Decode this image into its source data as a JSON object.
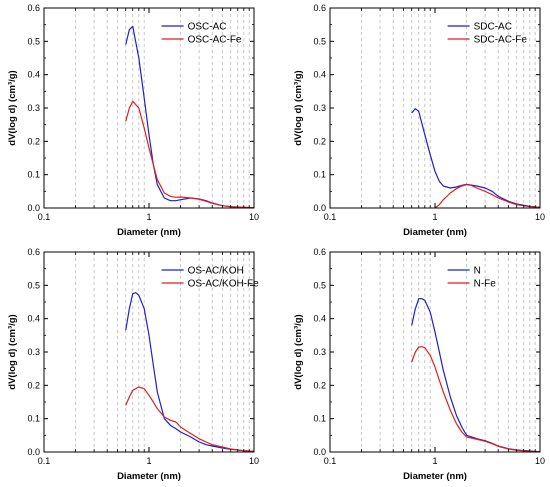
{
  "chart_data": [
    {
      "type": "line",
      "xscale": "log",
      "xlabel": "Diameter (nm)",
      "ylabel": "dV(log d) (cm³/g)",
      "xlim": [
        0.1,
        10
      ],
      "ylim": [
        0,
        0.6
      ],
      "x_ticks": [
        "0.1",
        "1",
        "10"
      ],
      "y_ticks": [
        "0.0",
        "0.1",
        "0.2",
        "0.3",
        "0.4",
        "0.5",
        "0.6"
      ],
      "grid": "vertical-dashed",
      "legend": "top-right",
      "series": [
        {
          "name": "OSC-AC",
          "color": "#1f1fd0",
          "x": [
            0.6,
            0.65,
            0.7,
            0.8,
            0.9,
            1.0,
            1.1,
            1.2,
            1.4,
            1.6,
            1.8,
            2.0,
            2.5,
            3.0,
            3.5,
            4,
            5,
            6,
            8,
            10
          ],
          "y": [
            0.49,
            0.535,
            0.545,
            0.45,
            0.33,
            0.22,
            0.13,
            0.07,
            0.03,
            0.022,
            0.022,
            0.025,
            0.03,
            0.027,
            0.022,
            0.015,
            0.007,
            0.004,
            0.002,
            0.001
          ]
        },
        {
          "name": "OSC-AC-Fe",
          "color": "#e0201a",
          "x": [
            0.6,
            0.65,
            0.7,
            0.8,
            0.9,
            1.0,
            1.1,
            1.2,
            1.4,
            1.6,
            1.8,
            2.0,
            2.5,
            3.0,
            3.5,
            4,
            5,
            6,
            8,
            10
          ],
          "y": [
            0.26,
            0.3,
            0.32,
            0.3,
            0.24,
            0.18,
            0.13,
            0.085,
            0.045,
            0.035,
            0.032,
            0.033,
            0.03,
            0.026,
            0.02,
            0.014,
            0.007,
            0.004,
            0.002,
            0.001
          ]
        }
      ]
    },
    {
      "type": "line",
      "xscale": "log",
      "xlabel": "Diameter (nm)",
      "ylabel": "dV(log d) (cm³/g)",
      "xlim": [
        0.1,
        10
      ],
      "ylim": [
        0,
        0.6
      ],
      "x_ticks": [
        "0.1",
        "1",
        "10"
      ],
      "y_ticks": [
        "0.0",
        "0.1",
        "0.2",
        "0.3",
        "0.4",
        "0.5",
        "0.6"
      ],
      "grid": "vertical-dashed",
      "legend": "top-right",
      "series": [
        {
          "name": "SDC-AC",
          "color": "#1f1fd0",
          "x": [
            0.6,
            0.65,
            0.7,
            0.8,
            0.9,
            1.0,
            1.1,
            1.2,
            1.4,
            1.6,
            1.8,
            2.0,
            2.5,
            3.0,
            3.5,
            4,
            5,
            6,
            8,
            10
          ],
          "y": [
            0.285,
            0.298,
            0.29,
            0.22,
            0.16,
            0.11,
            0.08,
            0.066,
            0.06,
            0.063,
            0.068,
            0.071,
            0.066,
            0.06,
            0.05,
            0.035,
            0.02,
            0.012,
            0.005,
            0.002
          ]
        },
        {
          "name": "SDC-AC-Fe",
          "color": "#e0201a",
          "x": [
            1.0,
            1.1,
            1.2,
            1.4,
            1.6,
            1.8,
            2.0,
            2.2,
            2.5,
            3.0,
            3.5,
            4,
            5,
            6,
            8,
            10
          ],
          "y": [
            0.0,
            0.01,
            0.025,
            0.045,
            0.058,
            0.066,
            0.07,
            0.068,
            0.06,
            0.05,
            0.04,
            0.03,
            0.018,
            0.01,
            0.004,
            0.002
          ]
        }
      ]
    },
    {
      "type": "line",
      "xscale": "log",
      "xlabel": "Diameter (nm)",
      "ylabel": "dV(log d) (cm³/g)",
      "xlim": [
        0.1,
        10
      ],
      "ylim": [
        0,
        0.6
      ],
      "x_ticks": [
        "0.1",
        "1",
        "10"
      ],
      "y_ticks": [
        "0.0",
        "0.1",
        "0.2",
        "0.3",
        "0.4",
        "0.5",
        "0.6"
      ],
      "grid": "vertical-dashed",
      "legend": "top-right",
      "series": [
        {
          "name": "OS-AC/KOH",
          "color": "#1f1fd0",
          "x": [
            0.6,
            0.65,
            0.7,
            0.75,
            0.8,
            0.9,
            1.0,
            1.1,
            1.2,
            1.4,
            1.6,
            1.8,
            2.0,
            2.5,
            3.0,
            3.5,
            4,
            5,
            6,
            8,
            10
          ],
          "y": [
            0.365,
            0.43,
            0.475,
            0.478,
            0.47,
            0.43,
            0.35,
            0.26,
            0.18,
            0.1,
            0.08,
            0.07,
            0.06,
            0.045,
            0.03,
            0.022,
            0.018,
            0.012,
            0.008,
            0.004,
            0.002
          ]
        },
        {
          "name": "OS-AC/KOH-Fe",
          "color": "#e0201a",
          "x": [
            0.6,
            0.65,
            0.7,
            0.8,
            0.9,
            1.0,
            1.1,
            1.2,
            1.4,
            1.6,
            1.8,
            2.0,
            2.5,
            3.0,
            3.5,
            4,
            5,
            6,
            8,
            10
          ],
          "y": [
            0.14,
            0.165,
            0.185,
            0.195,
            0.19,
            0.17,
            0.15,
            0.13,
            0.105,
            0.095,
            0.09,
            0.075,
            0.055,
            0.04,
            0.03,
            0.022,
            0.015,
            0.009,
            0.004,
            0.002
          ]
        }
      ]
    },
    {
      "type": "line",
      "xscale": "log",
      "xlabel": "Diameter (nm)",
      "ylabel": "dV(log d) (cm³/g)",
      "xlim": [
        0.1,
        10
      ],
      "ylim": [
        0,
        0.6
      ],
      "x_ticks": [
        "0.1",
        "1",
        "10"
      ],
      "y_ticks": [
        "0.0",
        "0.1",
        "0.2",
        "0.3",
        "0.4",
        "0.5",
        "0.6"
      ],
      "grid": "vertical-dashed",
      "legend": "top-right",
      "series": [
        {
          "name": "N",
          "color": "#1f1fd0",
          "x": [
            0.6,
            0.65,
            0.7,
            0.75,
            0.8,
            0.9,
            1.0,
            1.1,
            1.2,
            1.4,
            1.6,
            1.8,
            2.0,
            2.5,
            3.0,
            3.5,
            4,
            5,
            6,
            8,
            10
          ],
          "y": [
            0.38,
            0.43,
            0.46,
            0.46,
            0.455,
            0.42,
            0.36,
            0.3,
            0.245,
            0.165,
            0.11,
            0.075,
            0.05,
            0.04,
            0.034,
            0.026,
            0.018,
            0.01,
            0.006,
            0.003,
            0.001
          ]
        },
        {
          "name": "N-Fe",
          "color": "#e0201a",
          "x": [
            0.6,
            0.65,
            0.7,
            0.75,
            0.8,
            0.9,
            1.0,
            1.1,
            1.2,
            1.4,
            1.6,
            1.8,
            2.0,
            2.5,
            3.0,
            3.5,
            4,
            5,
            6,
            8,
            10
          ],
          "y": [
            0.27,
            0.3,
            0.315,
            0.316,
            0.313,
            0.29,
            0.255,
            0.215,
            0.18,
            0.125,
            0.085,
            0.06,
            0.045,
            0.038,
            0.032,
            0.025,
            0.017,
            0.009,
            0.005,
            0.002,
            0.001
          ]
        }
      ]
    }
  ]
}
